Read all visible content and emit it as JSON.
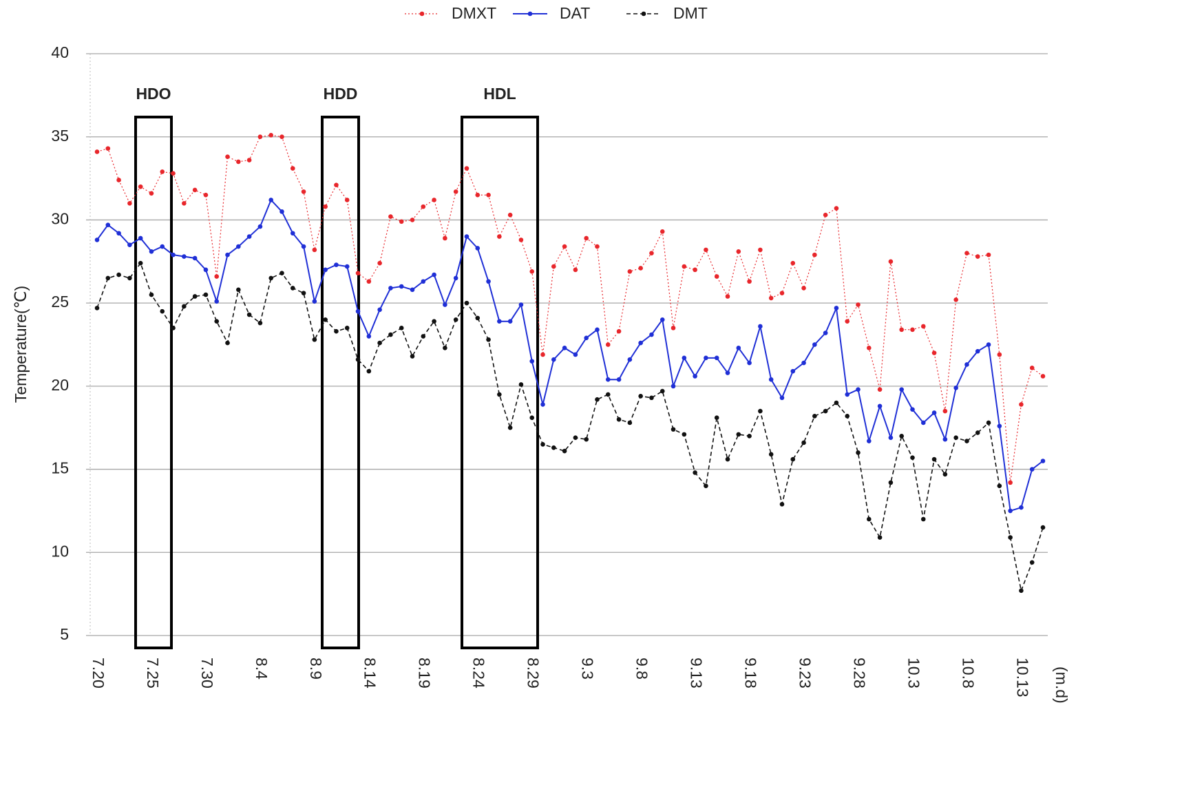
{
  "chart_data": {
    "type": "line",
    "y_label": "Temperature(℃)",
    "x_label": "(m.d)",
    "categories": [
      "7.20",
      null,
      null,
      null,
      null,
      "7.25",
      null,
      null,
      null,
      null,
      "7.30",
      null,
      null,
      null,
      null,
      "8.4",
      null,
      null,
      null,
      null,
      "8.9",
      null,
      null,
      null,
      null,
      "8.14",
      null,
      null,
      null,
      null,
      "8.19",
      null,
      null,
      null,
      null,
      "8.24",
      null,
      null,
      null,
      null,
      "8.29",
      null,
      null,
      null,
      null,
      "9.3",
      null,
      null,
      null,
      null,
      "9.8",
      null,
      null,
      null,
      null,
      "9.13",
      null,
      null,
      null,
      null,
      "9.18",
      null,
      null,
      null,
      null,
      "9.23",
      null,
      null,
      null,
      null,
      "9.28",
      null,
      null,
      null,
      null,
      "10.3",
      null,
      null,
      null,
      null,
      "10.8",
      null,
      null,
      null,
      null,
      "10.13",
      null,
      null
    ],
    "series": [
      {
        "name": "DMXT",
        "color": "#e8262b",
        "line_style": "dotted",
        "values": [
          34.1,
          34.3,
          32.4,
          31.0,
          32.0,
          31.6,
          32.9,
          32.8,
          31.0,
          31.8,
          31.5,
          26.6,
          33.8,
          33.5,
          33.6,
          35.0,
          35.1,
          35.0,
          33.1,
          31.7,
          28.2,
          30.8,
          32.1,
          31.2,
          26.8,
          26.3,
          27.4,
          30.2,
          29.9,
          30.0,
          30.8,
          31.2,
          28.9,
          31.7,
          33.1,
          31.5,
          31.5,
          29.0,
          30.3,
          28.8,
          26.9,
          21.9,
          27.2,
          28.4,
          27.0,
          28.9,
          28.4,
          22.5,
          23.3,
          26.9,
          27.1,
          28.0,
          29.3,
          23.5,
          27.2,
          27.0,
          28.2,
          26.6,
          25.4,
          28.1,
          26.3,
          28.2,
          25.3,
          25.6,
          27.4,
          25.9,
          27.9,
          30.3,
          30.7,
          23.9,
          24.9,
          22.3,
          19.8,
          27.5,
          23.4,
          23.4,
          23.6,
          22.0,
          18.5,
          25.2,
          28.0,
          27.8,
          27.9,
          21.9,
          14.2,
          18.9,
          21.1,
          20.6
        ]
      },
      {
        "name": "DAT",
        "color": "#1f2fd6",
        "line_style": "solid",
        "values": [
          28.8,
          29.7,
          29.2,
          28.5,
          28.9,
          28.1,
          28.4,
          27.9,
          27.8,
          27.7,
          27.0,
          25.1,
          27.9,
          28.4,
          29.0,
          29.6,
          31.2,
          30.5,
          29.2,
          28.4,
          25.1,
          27.0,
          27.3,
          27.2,
          24.5,
          23.0,
          24.6,
          25.9,
          26.0,
          25.8,
          26.3,
          26.7,
          24.9,
          26.5,
          29.0,
          28.3,
          26.3,
          23.9,
          23.9,
          24.9,
          21.5,
          18.9,
          21.6,
          22.3,
          21.9,
          22.9,
          23.4,
          20.4,
          20.4,
          21.6,
          22.6,
          23.1,
          24.0,
          20.0,
          21.7,
          20.6,
          21.7,
          21.7,
          20.8,
          22.3,
          21.4,
          23.6,
          20.4,
          19.3,
          20.9,
          21.4,
          22.5,
          23.2,
          24.7,
          19.5,
          19.8,
          16.7,
          18.8,
          16.9,
          19.8,
          18.6,
          17.8,
          18.4,
          16.8,
          19.9,
          21.3,
          22.1,
          22.5,
          17.6,
          12.5,
          12.7,
          15.0,
          15.5
        ]
      },
      {
        "name": "DMT",
        "color": "#111111",
        "line_style": "dashed",
        "values": [
          24.7,
          26.5,
          26.7,
          26.5,
          27.4,
          25.5,
          24.5,
          23.5,
          24.8,
          25.4,
          25.5,
          23.9,
          22.6,
          25.8,
          24.3,
          23.8,
          26.5,
          26.8,
          25.9,
          25.6,
          22.8,
          24.0,
          23.3,
          23.5,
          21.6,
          20.9,
          22.6,
          23.1,
          23.5,
          21.8,
          23.0,
          23.9,
          22.3,
          24.0,
          25.0,
          24.1,
          22.8,
          19.5,
          17.5,
          20.1,
          18.1,
          16.5,
          16.3,
          16.1,
          16.9,
          16.8,
          19.2,
          19.5,
          18.0,
          17.8,
          19.4,
          19.3,
          19.7,
          17.4,
          17.1,
          14.8,
          14.0,
          18.1,
          15.6,
          17.1,
          17.0,
          18.5,
          15.9,
          12.9,
          15.6,
          16.6,
          18.2,
          18.5,
          19.0,
          18.2,
          16.0,
          12.0,
          10.9,
          14.2,
          17.0,
          15.7,
          12.0,
          15.6,
          14.7,
          16.9,
          16.7,
          17.2,
          17.8,
          14.0,
          10.9,
          7.7,
          9.4,
          11.5
        ]
      }
    ],
    "annotations": [
      "HDO",
      "HDD",
      "HDL"
    ],
    "ylim": [
      5,
      40
    ],
    "yticks": [
      5,
      10,
      15,
      20,
      25,
      30,
      35,
      40
    ],
    "grid": true,
    "legend": "top"
  }
}
